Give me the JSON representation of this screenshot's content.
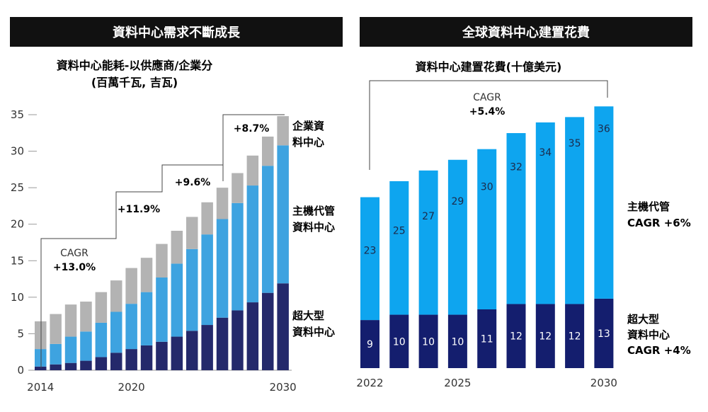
{
  "colors": {
    "header_bg": "#111111",
    "header_text": "#ffffff",
    "left_hyperscale": "#24296b",
    "left_colo": "#3ea3e0",
    "left_enterprise": "#b3b3b3",
    "right_hyperscale": "#141e6e",
    "right_colo": "#0ea5ef",
    "axis": "#9a9a9a",
    "annotation_line": "#444444"
  },
  "left_panel": {
    "header": "資料中心需求不斷成長",
    "title_line1": "資料中心能耗-以供應商/企業分",
    "title_line2": "(百萬千瓦, 吉瓦)",
    "legend": {
      "enterprise": [
        "企業資",
        "料中心"
      ],
      "colo": [
        "主機代管",
        "資料中心"
      ],
      "hyperscale": [
        "超大型",
        "資料中心"
      ]
    },
    "cagr_labels": [
      {
        "line1": "CAGR",
        "line2": "+13.0%"
      },
      {
        "line1": "",
        "line2": "+11.9%"
      },
      {
        "line1": "",
        "line2": "+9.6%"
      },
      {
        "line1": "",
        "line2": "+8.7%"
      }
    ]
  },
  "right_panel": {
    "header": "全球資料中心建置花費",
    "title": "資料中心建置花費(十億美元)",
    "cagr": {
      "line1": "CAGR",
      "line2": "+5.4%"
    },
    "legend": {
      "colo_line1": "主機代管",
      "colo_line2": "CAGR +6%",
      "hyperscale_line1": "超大型",
      "hyperscale_line2": "資料中心",
      "hyperscale_line3": "CAGR +4%"
    }
  },
  "chart_data": [
    {
      "type": "bar",
      "stacked": true,
      "title": "資料中心能耗-以供應商/企業分 (百萬千瓦, 吉瓦)",
      "categories": [
        "2014",
        "2015",
        "2016",
        "2017",
        "2018",
        "2019",
        "2020",
        "2021",
        "2022",
        "2023",
        "2024",
        "2025",
        "2026",
        "2027",
        "2028",
        "2029",
        "2030"
      ],
      "x_tick_labels": [
        "2014",
        "2020",
        "2030"
      ],
      "series": [
        {
          "name": "超大型資料中心",
          "values": [
            0.5,
            0.8,
            1.0,
            1.3,
            1.8,
            2.4,
            2.9,
            3.4,
            3.9,
            4.6,
            5.4,
            6.2,
            7.2,
            8.2,
            9.3,
            10.6,
            11.9
          ]
        },
        {
          "name": "主機代管資料中心",
          "values": [
            2.4,
            2.8,
            3.6,
            4.0,
            4.7,
            5.6,
            6.2,
            7.3,
            8.8,
            10.0,
            11.2,
            12.4,
            13.5,
            14.7,
            16.0,
            17.4,
            18.9
          ]
        },
        {
          "name": "企業資料中心",
          "values": [
            3.8,
            4.1,
            4.4,
            4.1,
            4.2,
            4.3,
            4.9,
            4.7,
            4.6,
            4.5,
            4.4,
            4.4,
            4.3,
            4.1,
            4.1,
            4.0,
            4.0
          ]
        }
      ],
      "ylim": [
        0,
        35
      ],
      "yticks": [
        0,
        5,
        10,
        15,
        20,
        25,
        30,
        35
      ],
      "xlabel": "",
      "ylabel": ""
    },
    {
      "type": "bar",
      "stacked": true,
      "title": "資料中心建置花費(十億美元)",
      "categories": [
        "2022",
        "2023",
        "2024",
        "2025",
        "2026",
        "2027",
        "2028",
        "2029",
        "2030"
      ],
      "x_tick_labels": [
        "2022",
        "2025",
        "2030"
      ],
      "series": [
        {
          "name": "超大型資料中心",
          "values": [
            9,
            10,
            10,
            10,
            11,
            12,
            12,
            12,
            13
          ]
        },
        {
          "name": "主機代管",
          "values": [
            23,
            25,
            27,
            29,
            30,
            32,
            34,
            35,
            36
          ]
        }
      ],
      "ylim": [
        0,
        50
      ],
      "xlabel": "",
      "ylabel": ""
    }
  ]
}
